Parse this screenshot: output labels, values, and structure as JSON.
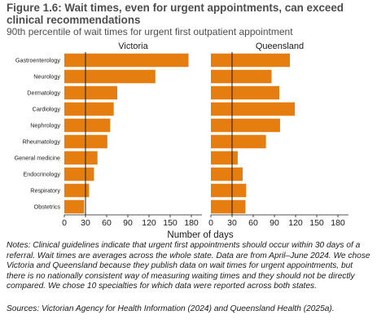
{
  "title": "Figure 1.6: Wait times, even for urgent appointments, can exceed clinical recommendations",
  "subtitle": "90th percentile of wait times for urgent first outpatient appointment",
  "notes": "Notes: Clinical guidelines indicate that urgent first appointments should occur within 30 days of a referral. Wait times are averages across the whole state. Data are from April–June 2024. We chose Victoria and Queensland because they publish data on wait times for urgent appointments, but there is no nationally consistent way of measuring waiting times and they should not be directly compared. We chose 10 specialties for which data were reported across both states.",
  "sources": "Sources: Victorian Agency for Health Information (2024) and Queensland Health (2025a).",
  "chart_data": {
    "type": "bar",
    "orientation": "horizontal",
    "xlabel": "Number of days",
    "xlim": [
      0,
      195
    ],
    "xticks": [
      0,
      30,
      60,
      90,
      120,
      150,
      180
    ],
    "reference_line": 30,
    "bar_color": "#e67e0f",
    "reference_line_color": "#1a1a1a",
    "categories": [
      "Gastroenterology",
      "Neurology",
      "Dermatology",
      "Cardiology",
      "Nephrology",
      "Rheumatology",
      "General medicine",
      "Endocrinology",
      "Respiratory",
      "Obstetrics"
    ],
    "series": [
      {
        "name": "Victoria",
        "values": [
          176,
          129,
          75,
          70,
          65,
          61,
          47,
          42,
          35,
          28
        ]
      },
      {
        "name": "Queensland",
        "values": [
          112,
          86,
          97,
          119,
          98,
          78,
          38,
          45,
          50,
          49
        ]
      }
    ]
  }
}
